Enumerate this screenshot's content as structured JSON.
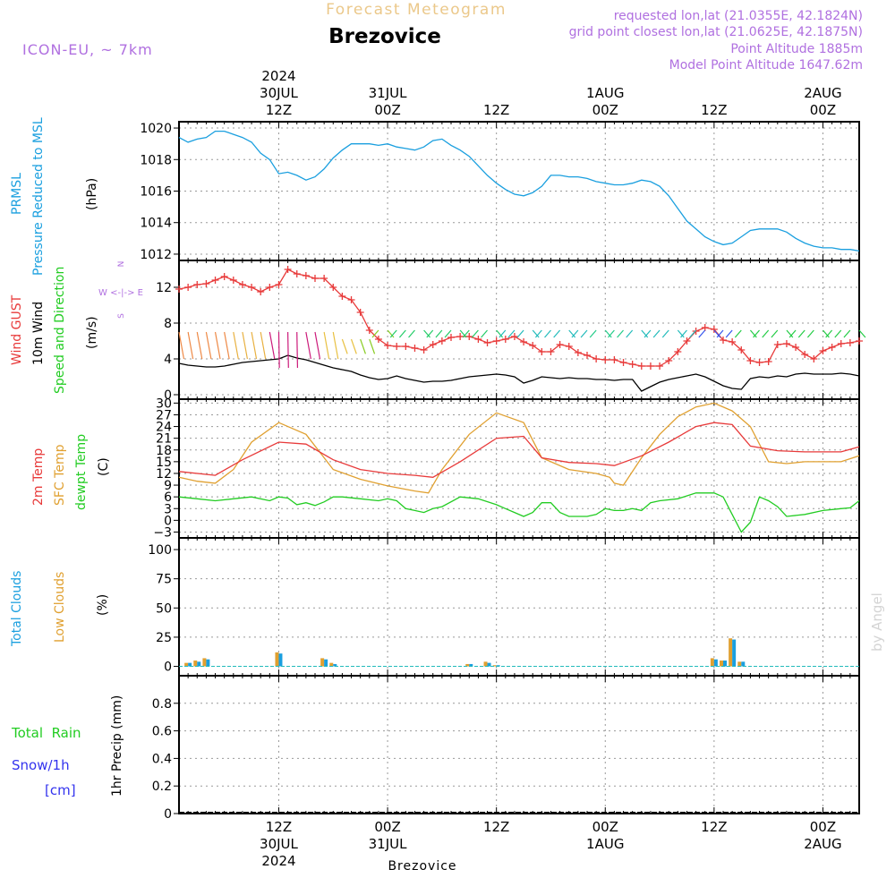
{
  "header": {
    "forecast_title": "Forecast Meteogram",
    "station": "Brezovice",
    "model": "ICON-EU, ~ 7km",
    "requested": "requested lon,lat (21.0355E, 42.1824N)",
    "grid_point": "grid point closest lon,lat (21.0625E, 42.1875N)",
    "point_altitude": "Point Altitude 1885m",
    "model_altitude": "Model Point Altitude 1647.62m",
    "footer_station": "Brezovice",
    "watermark": "by Angel"
  },
  "time_axis": {
    "top": [
      {
        "h": 12,
        "lines": [
          "2024",
          "30JUL",
          "12Z"
        ]
      },
      {
        "h": 24,
        "lines": [
          "31JUL",
          "00Z"
        ]
      },
      {
        "h": 36,
        "lines": [
          "12Z"
        ]
      },
      {
        "h": 48,
        "lines": [
          "1AUG",
          "00Z"
        ]
      },
      {
        "h": 60,
        "lines": [
          "12Z"
        ]
      },
      {
        "h": 72,
        "lines": [
          "2AUG",
          "00Z"
        ]
      }
    ],
    "bottom": [
      {
        "h": 12,
        "lines": [
          "12Z",
          "30JUL",
          "2024"
        ]
      },
      {
        "h": 24,
        "lines": [
          "00Z",
          "31JUL"
        ]
      },
      {
        "h": 36,
        "lines": [
          "12Z"
        ]
      },
      {
        "h": 48,
        "lines": [
          "00Z",
          "1AUG"
        ]
      },
      {
        "h": 60,
        "lines": [
          "12Z"
        ]
      },
      {
        "h": 72,
        "lines": [
          "00Z",
          "2AUG"
        ]
      }
    ],
    "x_range_hours_from_30JUL_00Z": [
      1,
      76
    ]
  },
  "panel_labels": {
    "pressure": {
      "lines": [
        "PRMSL",
        "Pressure Reduced to MSL"
      ],
      "unit": "(hPa)"
    },
    "wind": {
      "gust": "Wind GUST",
      "wind10": "10m Wind",
      "speed_dir": "Speed and Direction",
      "unit": "(m/s)",
      "compass": [
        "N",
        "S",
        "W <-|-> E"
      ]
    },
    "temp": {
      "t2m": "2m Temp",
      "sfc": "SFC Temp",
      "dewpt": "dewpt Temp",
      "unit": "(C)"
    },
    "clouds": {
      "total": "Total Clouds",
      "low": "Low Clouds",
      "unit": "(%)"
    },
    "precip": {
      "total_rain": "Total  Rain",
      "snow": "Snow/1h",
      "snow_unit": "[cm]",
      "axis": "1hr Precip (mm)"
    }
  },
  "colors": {
    "pressure": "#1a9fdf",
    "gust": "#e83a3a",
    "wind10": "#000000",
    "t2m": "#e83a3a",
    "sfc": "#e0a030",
    "dewpt": "#22cc22",
    "total_clouds": "#1a9fdf",
    "low_clouds": "#e0a030",
    "rain": "#22cc22",
    "snow": "#3333ee",
    "header_lilac": "#b070e0",
    "forecast_title": "#ebc88a"
  },
  "chart_data": [
    {
      "type": "line",
      "id": "pressure",
      "ylabel": "(hPa)",
      "ylim": [
        1011.6,
        1020.4
      ],
      "yticks": [
        1012,
        1014,
        1016,
        1018,
        1020
      ],
      "grid": true,
      "series": [
        {
          "name": "PRMSL",
          "x": [
            1,
            2,
            3,
            4,
            5,
            6,
            7,
            8,
            9,
            10,
            11,
            12,
            13,
            14,
            15,
            16,
            17,
            18,
            19,
            20,
            21,
            22,
            23,
            24,
            25,
            26,
            27,
            28,
            29,
            30,
            31,
            32,
            33,
            34,
            35,
            36,
            37,
            38,
            39,
            40,
            41,
            42,
            43,
            44,
            45,
            46,
            47,
            48,
            49,
            50,
            51,
            52,
            53,
            54,
            55,
            56,
            57,
            58,
            59,
            60,
            61,
            62,
            63,
            64,
            65,
            66,
            67,
            68,
            69,
            70,
            71,
            72,
            73,
            74,
            75,
            76
          ],
          "y": [
            1019.4,
            1019.1,
            1019.3,
            1019.4,
            1019.8,
            1019.8,
            1019.6,
            1019.4,
            1019.1,
            1018.4,
            1018.0,
            1017.1,
            1017.2,
            1017.0,
            1016.7,
            1016.9,
            1017.4,
            1018.1,
            1018.6,
            1019.0,
            1019.0,
            1019.0,
            1018.9,
            1019.0,
            1018.8,
            1018.7,
            1018.6,
            1018.8,
            1019.2,
            1019.3,
            1018.9,
            1018.6,
            1018.2,
            1017.6,
            1017.0,
            1016.5,
            1016.1,
            1015.8,
            1015.7,
            1015.9,
            1016.3,
            1017.0,
            1017.0,
            1016.9,
            1016.9,
            1016.8,
            1016.6,
            1016.5,
            1016.4,
            1016.4,
            1016.5,
            1016.7,
            1016.6,
            1016.3,
            1015.7,
            1014.9,
            1014.1,
            1013.6,
            1013.1,
            1012.8,
            1012.6,
            1012.7,
            1013.1,
            1013.5,
            1013.6,
            1013.6,
            1013.6,
            1013.4,
            1013.0,
            1012.7,
            1012.5,
            1012.4,
            1012.4,
            1012.3,
            1012.3,
            1012.2
          ]
        }
      ]
    },
    {
      "type": "line",
      "id": "wind",
      "ylabel": "(m/s)",
      "ylim": [
        -0.5,
        15
      ],
      "yticks": [
        0,
        4,
        8,
        12
      ],
      "grid": true,
      "series": [
        {
          "name": "Wind GUST",
          "marker": "+",
          "x": [
            1,
            2,
            3,
            4,
            5,
            6,
            7,
            8,
            9,
            10,
            11,
            12,
            13,
            14,
            15,
            16,
            17,
            18,
            19,
            20,
            21,
            22,
            23,
            24,
            25,
            26,
            27,
            28,
            29,
            30,
            31,
            32,
            33,
            34,
            35,
            36,
            37,
            38,
            39,
            40,
            41,
            42,
            43,
            44,
            45,
            46,
            47,
            48,
            49,
            50,
            51,
            52,
            53,
            54,
            55,
            56,
            57,
            58,
            59,
            60,
            61,
            62,
            63,
            64,
            65,
            66,
            67,
            68,
            69,
            70,
            71,
            72,
            73,
            74,
            75,
            76
          ],
          "y": [
            11.8,
            12.0,
            12.3,
            12.4,
            12.8,
            13.2,
            12.8,
            12.3,
            12.0,
            11.5,
            12.0,
            12.3,
            14.0,
            13.5,
            13.3,
            13.0,
            13.0,
            12.0,
            11.0,
            10.6,
            9.2,
            7.2,
            6.2,
            5.5,
            5.4,
            5.4,
            5.2,
            5.0,
            5.6,
            6.0,
            6.4,
            6.5,
            6.5,
            6.2,
            5.8,
            6.0,
            6.2,
            6.5,
            5.9,
            5.5,
            4.8,
            4.8,
            5.6,
            5.4,
            4.7,
            4.4,
            4.0,
            3.9,
            3.9,
            3.6,
            3.4,
            3.2,
            3.2,
            3.2,
            3.8,
            4.8,
            6.0,
            7.1,
            7.5,
            7.3,
            6.1,
            5.9,
            5.0,
            3.8,
            3.6,
            3.7,
            5.6,
            5.7,
            5.3,
            4.5,
            4.0,
            4.9,
            5.3,
            5.7,
            5.8,
            6.0
          ]
        },
        {
          "name": "10m Wind",
          "x": [
            1,
            2,
            3,
            4,
            5,
            6,
            7,
            8,
            9,
            10,
            11,
            12,
            13,
            14,
            15,
            16,
            17,
            18,
            19,
            20,
            21,
            22,
            23,
            24,
            25,
            26,
            27,
            28,
            29,
            30,
            31,
            32,
            33,
            34,
            35,
            36,
            37,
            38,
            39,
            40,
            41,
            42,
            43,
            44,
            45,
            46,
            47,
            48,
            49,
            50,
            51,
            52,
            53,
            54,
            55,
            56,
            57,
            58,
            59,
            60,
            61,
            62,
            63,
            64,
            65,
            66,
            67,
            68,
            69,
            70,
            71,
            72,
            73,
            74,
            75,
            76
          ],
          "y": [
            3.5,
            3.3,
            3.2,
            3.1,
            3.1,
            3.2,
            3.4,
            3.6,
            3.7,
            3.8,
            3.9,
            4.0,
            4.4,
            4.1,
            3.9,
            3.6,
            3.3,
            3.0,
            2.8,
            2.6,
            2.2,
            1.9,
            1.7,
            1.8,
            2.1,
            1.8,
            1.6,
            1.4,
            1.5,
            1.5,
            1.6,
            1.8,
            2.0,
            2.1,
            2.2,
            2.3,
            2.2,
            2.0,
            1.3,
            1.6,
            2.0,
            1.9,
            1.8,
            1.9,
            1.8,
            1.8,
            1.7,
            1.7,
            1.6,
            1.7,
            1.7,
            0.4,
            0.9,
            1.4,
            1.7,
            1.9,
            2.1,
            2.3,
            2.0,
            1.5,
            1.0,
            0.7,
            0.6,
            1.8,
            2.0,
            1.9,
            2.1,
            2.0,
            2.3,
            2.4,
            2.3,
            2.3,
            2.3,
            2.4,
            2.3,
            2.1
          ]
        }
      ],
      "wind_direction_arrows": "speed-colored arrows every hour along the 10m wind row; orange/yellow north-westerly early, green/cyan later, blue/purple around 1AUG 12Z"
    },
    {
      "type": "line",
      "id": "temperature",
      "ylabel": "(C)",
      "ylim": [
        -4.5,
        31
      ],
      "yticks": [
        -3,
        0,
        3,
        6,
        9,
        12,
        15,
        18,
        21,
        24,
        27,
        30
      ],
      "grid": true,
      "series": [
        {
          "name": "2m Temp",
          "x": [
            1,
            5,
            8,
            12,
            15,
            18,
            21,
            24,
            27,
            29,
            32,
            36,
            39,
            41,
            44,
            47,
            49,
            52,
            55,
            58,
            60,
            62,
            64,
            67,
            70,
            72,
            74,
            76
          ],
          "y": [
            12.5,
            11.5,
            15.5,
            20,
            19.5,
            15.5,
            13,
            12,
            11.5,
            11,
            15,
            21,
            21.5,
            16,
            14.8,
            14.5,
            14,
            16.5,
            20,
            24,
            25,
            24.5,
            19,
            17.8,
            17.5,
            17.5,
            17.5,
            18.8
          ]
        },
        {
          "name": "SFC Temp",
          "x": [
            1,
            3,
            5,
            7,
            9,
            12,
            15,
            18,
            21,
            24,
            27,
            28.5,
            30,
            33,
            36,
            39,
            41,
            44,
            47,
            48.5,
            49,
            50,
            52,
            54,
            56,
            58,
            60,
            62,
            64,
            66,
            68,
            70,
            72,
            74,
            76
          ],
          "y": [
            11,
            10,
            9.5,
            13,
            20,
            25,
            22,
            13,
            10.5,
            8.8,
            7.5,
            7,
            13,
            22,
            27.5,
            25,
            16,
            13,
            12,
            11,
            9.5,
            9,
            16,
            22,
            26.5,
            29,
            30,
            28,
            24,
            15,
            14.5,
            15,
            15,
            15,
            16.5
          ]
        },
        {
          "name": "dewpt Temp",
          "x": [
            1,
            3,
            5,
            7,
            9,
            11,
            12,
            13,
            14,
            15,
            16,
            17,
            18,
            19,
            21,
            23,
            24,
            25,
            26,
            27,
            28,
            29,
            30,
            32,
            34,
            36,
            37,
            38,
            39,
            40,
            41,
            42,
            43,
            44,
            46,
            47,
            48,
            49,
            50,
            51,
            52,
            53,
            54,
            56,
            58,
            59,
            60,
            61,
            62,
            63,
            64,
            65,
            66,
            67,
            68,
            70,
            72,
            74,
            75,
            76
          ],
          "y": [
            6,
            5.5,
            5,
            5.5,
            6,
            5,
            6,
            5.7,
            4,
            4.5,
            3.8,
            4.7,
            6,
            6,
            5.5,
            5,
            5.5,
            5,
            3,
            2.5,
            2,
            3,
            3.5,
            6,
            5.5,
            4,
            3,
            2,
            1,
            2,
            4.5,
            4.5,
            2,
            1,
            1,
            1.5,
            3,
            2.5,
            2.5,
            3,
            2.5,
            4.5,
            5,
            5.5,
            7,
            7,
            7,
            6,
            1.5,
            -3,
            -0.5,
            6,
            5,
            3.5,
            1,
            1.5,
            2.5,
            3,
            3.2,
            5
          ]
        }
      ]
    },
    {
      "type": "bar",
      "id": "clouds",
      "ylabel": "(%)",
      "ylim": [
        -8,
        110
      ],
      "yticks": [
        0,
        25,
        50,
        75,
        100
      ],
      "grid": true,
      "series": [
        {
          "name": "Total Clouds",
          "x": [
            2,
            3,
            4,
            12,
            17,
            18,
            33,
            35,
            36,
            60,
            61,
            62,
            63
          ],
          "y": [
            3,
            4,
            6,
            11,
            6,
            2,
            2,
            3,
            1,
            6,
            5,
            23,
            4
          ]
        },
        {
          "name": "Low Clouds",
          "x": [
            2,
            3,
            4,
            12,
            17,
            18,
            33,
            35,
            36,
            60,
            61,
            62,
            63
          ],
          "y": [
            3,
            5,
            7,
            12,
            7,
            3,
            2,
            4,
            1,
            7,
            5,
            24,
            4
          ]
        }
      ]
    },
    {
      "type": "bar",
      "id": "precip",
      "ylabel": "1hr Precip (mm)",
      "ylim": [
        0,
        1.0
      ],
      "yticks": [
        0,
        0.2,
        0.4,
        0.6,
        0.8
      ],
      "yticklabels": [
        "0",
        "0.2",
        "0.4",
        "0.6",
        "0.8"
      ],
      "grid": true,
      "series": [
        {
          "name": "Total Rain",
          "values": []
        },
        {
          "name": "Snow/1h",
          "values": []
        }
      ]
    }
  ]
}
